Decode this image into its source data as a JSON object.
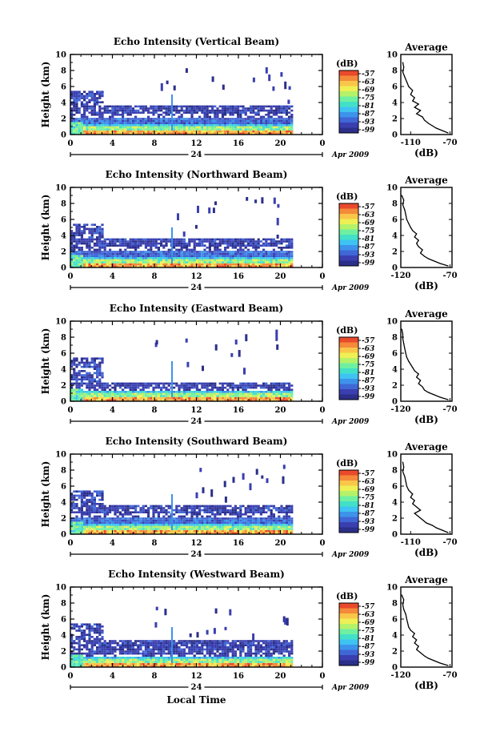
{
  "figure": {
    "xlabel_bottom": "Local Time",
    "date_label": "Apr 2009",
    "colorbar_unit": "(dB)",
    "profile_title": "Average",
    "profile_xlabel": "(dB)"
  },
  "colorscale": {
    "colors": [
      "#2b2f8a",
      "#3a3fb0",
      "#3f67d6",
      "#3d93ea",
      "#3fc3f2",
      "#43e0c8",
      "#6ff0a0",
      "#b4f26a",
      "#eef055",
      "#f9c64a",
      "#f48a3a",
      "#ea4a2c"
    ],
    "tick_labels": [
      "-57",
      "-63",
      "-69",
      "-75",
      "-81",
      "-87",
      "-93",
      "-99"
    ]
  },
  "chart_data": [
    {
      "type": "heatmap",
      "title": "Echo Intensity (Vertical Beam)",
      "ylabel": "Height (km)",
      "x_ticks": [
        "0",
        "4",
        "8",
        "12",
        "16",
        "20",
        "0"
      ],
      "x_day_label": "24",
      "y_ticks": [
        "0",
        "2",
        "4",
        "6",
        "8",
        "10"
      ],
      "xlim": [
        0,
        24
      ],
      "ylim": [
        0,
        10
      ],
      "cloud_layer_km": [
        2.0,
        3.4
      ],
      "profile": {
        "type": "line",
        "x_ticks": [
          "-110",
          "-70"
        ],
        "y_ticks": [
          "0",
          "2",
          "4",
          "6",
          "8",
          "10"
        ],
        "xlim": [
          -120,
          -68
        ],
        "ylim": [
          0,
          10
        ],
        "x": [
          -72,
          -78,
          -84,
          -88,
          -92,
          -96,
          -98,
          -104,
          -100,
          -106,
          -102,
          -108,
          -106,
          -110,
          -108,
          -112,
          -114,
          -116,
          -118,
          -117,
          -118
        ],
        "y": [
          0.2,
          0.5,
          0.8,
          1.1,
          1.4,
          1.8,
          2.2,
          2.6,
          3.0,
          3.4,
          3.8,
          4.2,
          4.6,
          5.0,
          5.5,
          6.0,
          6.6,
          7.2,
          7.8,
          8.4,
          9.0
        ]
      }
    },
    {
      "type": "heatmap",
      "title": "Echo Intensity (Northward Beam)",
      "ylabel": "Height (km)",
      "x_ticks": [
        "0",
        "4",
        "8",
        "12",
        "16",
        "20",
        "0"
      ],
      "x_day_label": "24",
      "y_ticks": [
        "0",
        "2",
        "4",
        "6",
        "8",
        "10"
      ],
      "xlim": [
        0,
        24
      ],
      "ylim": [
        0,
        10
      ],
      "cloud_layer_km": [
        2.0,
        3.4
      ],
      "profile": {
        "type": "line",
        "x_ticks": [
          "-120",
          "-70"
        ],
        "y_ticks": [
          "0",
          "2",
          "4",
          "6",
          "8",
          "10"
        ],
        "xlim": [
          -120,
          -68
        ],
        "ylim": [
          0,
          10
        ],
        "x": [
          -72,
          -80,
          -86,
          -92,
          -96,
          -100,
          -98,
          -102,
          -104,
          -102,
          -106,
          -104,
          -108,
          -110,
          -112,
          -114,
          -115,
          -116,
          -118,
          -117,
          -119
        ],
        "y": [
          0.2,
          0.5,
          0.8,
          1.1,
          1.4,
          1.8,
          2.2,
          2.6,
          3.0,
          3.4,
          3.8,
          4.2,
          4.6,
          5.0,
          5.5,
          6.0,
          6.6,
          7.2,
          7.8,
          8.4,
          9.0
        ]
      }
    },
    {
      "type": "heatmap",
      "title": "Echo Intensity (Eastward Beam)",
      "ylabel": "Height (km)",
      "x_ticks": [
        "0",
        "4",
        "8",
        "12",
        "16",
        "20",
        "0"
      ],
      "x_day_label": "24",
      "y_ticks": [
        "0",
        "2",
        "4",
        "6",
        "8",
        "10"
      ],
      "xlim": [
        0,
        24
      ],
      "ylim": [
        0,
        10
      ],
      "cloud_layer_km": [
        1.0,
        2.2
      ],
      "profile": {
        "type": "line",
        "x_ticks": [
          "-120",
          "-70"
        ],
        "y_ticks": [
          "0",
          "2",
          "4",
          "6",
          "8",
          "10"
        ],
        "xlim": [
          -120,
          -68
        ],
        "ylim": [
          0,
          10
        ],
        "x": [
          -72,
          -80,
          -86,
          -92,
          -96,
          -98,
          -102,
          -100,
          -104,
          -102,
          -106,
          -108,
          -110,
          -112,
          -114,
          -115,
          -116,
          -117,
          -118,
          -118,
          -119
        ],
        "y": [
          0.2,
          0.5,
          0.8,
          1.1,
          1.4,
          1.8,
          2.2,
          2.6,
          3.0,
          3.4,
          3.8,
          4.2,
          4.6,
          5.0,
          5.5,
          6.0,
          6.6,
          7.2,
          7.8,
          8.4,
          9.0
        ]
      }
    },
    {
      "type": "heatmap",
      "title": "Echo Intensity (Southward Beam)",
      "ylabel": "Height (km)",
      "x_ticks": [
        "0",
        "4",
        "8",
        "12",
        "16",
        "20",
        "0"
      ],
      "x_day_label": "24",
      "y_ticks": [
        "0",
        "2",
        "4",
        "6",
        "8",
        "10"
      ],
      "xlim": [
        0,
        24
      ],
      "ylim": [
        0,
        10
      ],
      "cloud_layer_km": [
        2.0,
        3.4
      ],
      "profile": {
        "type": "line",
        "x_ticks": [
          "-110",
          "-70"
        ],
        "y_ticks": [
          "0",
          "2",
          "4",
          "6",
          "8",
          "10"
        ],
        "xlim": [
          -120,
          -68
        ],
        "ylim": [
          0,
          10
        ],
        "x": [
          -72,
          -78,
          -84,
          -88,
          -94,
          -98,
          -102,
          -106,
          -100,
          -104,
          -108,
          -106,
          -110,
          -108,
          -112,
          -114,
          -115,
          -116,
          -118,
          -117,
          -118
        ],
        "y": [
          0.2,
          0.5,
          0.8,
          1.1,
          1.4,
          1.8,
          2.2,
          2.6,
          3.0,
          3.4,
          3.8,
          4.2,
          4.6,
          5.0,
          5.5,
          6.0,
          6.6,
          7.2,
          7.8,
          8.4,
          9.0
        ]
      }
    },
    {
      "type": "heatmap",
      "title": "Echo Intensity (Westward Beam)",
      "ylabel": "Height (km)",
      "x_ticks": [
        "0",
        "4",
        "8",
        "12",
        "16",
        "20",
        "0"
      ],
      "x_day_label": "24",
      "y_ticks": [
        "0",
        "2",
        "4",
        "6",
        "8",
        "10"
      ],
      "xlim": [
        0,
        24
      ],
      "ylim": [
        0,
        10
      ],
      "cloud_layer_km": [
        1.2,
        3.2
      ],
      "profile": {
        "type": "line",
        "x_ticks": [
          "-120",
          "-70"
        ],
        "y_ticks": [
          "0",
          "2",
          "4",
          "6",
          "8",
          "10"
        ],
        "xlim": [
          -120,
          -68
        ],
        "ylim": [
          0,
          10
        ],
        "x": [
          -72,
          -80,
          -86,
          -92,
          -96,
          -100,
          -104,
          -102,
          -106,
          -104,
          -108,
          -106,
          -110,
          -112,
          -113,
          -114,
          -115,
          -117,
          -118,
          -117,
          -119
        ],
        "y": [
          0.2,
          0.5,
          0.8,
          1.1,
          1.4,
          1.8,
          2.2,
          2.6,
          3.0,
          3.4,
          3.8,
          4.2,
          4.6,
          5.0,
          5.5,
          6.0,
          6.6,
          7.2,
          7.8,
          8.4,
          9.0
        ]
      }
    }
  ]
}
